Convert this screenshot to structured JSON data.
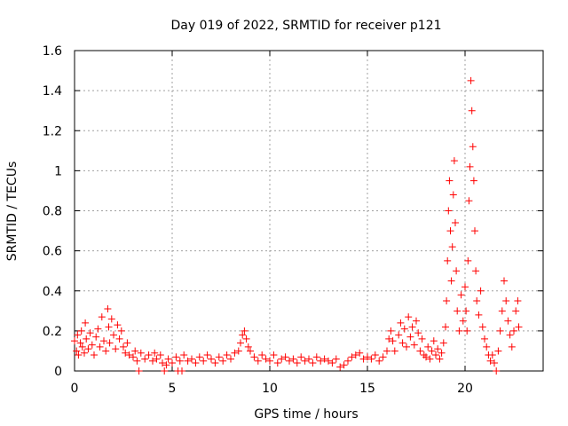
{
  "chart_data": {
    "type": "scatter",
    "title": "Day 019 of 2022, SRMTID for receiver p121",
    "xlabel": "GPS time / hours",
    "ylabel": "SRMTID / TECUs",
    "xlim": [
      0,
      24
    ],
    "ylim": [
      0,
      1.6
    ],
    "x_ticks": [
      0,
      5,
      10,
      15,
      20
    ],
    "x_tick_labels": [
      "0",
      "5",
      "10",
      "15",
      "20"
    ],
    "y_ticks": [
      0,
      0.2,
      0.4,
      0.6,
      0.8,
      1,
      1.2,
      1.4,
      1.6
    ],
    "y_tick_labels": [
      "0",
      "0.2",
      "0.4",
      "0.6",
      "0.8",
      "1",
      "1.2",
      "1.4",
      "1.6"
    ],
    "grid": true,
    "marker": "+",
    "point_color": "#ff0000",
    "series": [
      {
        "name": "SRMTID",
        "color": "#ff0000",
        "points": [
          [
            0.0,
            0.15
          ],
          [
            0.1,
            0.1
          ],
          [
            0.15,
            0.18
          ],
          [
            0.2,
            0.08
          ],
          [
            0.3,
            0.14
          ],
          [
            0.35,
            0.2
          ],
          [
            0.4,
            0.12
          ],
          [
            0.5,
            0.09
          ],
          [
            0.55,
            0.24
          ],
          [
            0.6,
            0.16
          ],
          [
            0.7,
            0.11
          ],
          [
            0.8,
            0.19
          ],
          [
            0.9,
            0.13
          ],
          [
            1.0,
            0.08
          ],
          [
            1.1,
            0.17
          ],
          [
            1.2,
            0.21
          ],
          [
            1.3,
            0.12
          ],
          [
            1.4,
            0.27
          ],
          [
            1.5,
            0.15
          ],
          [
            1.6,
            0.1
          ],
          [
            1.7,
            0.31
          ],
          [
            1.75,
            0.22
          ],
          [
            1.8,
            0.14
          ],
          [
            1.9,
            0.26
          ],
          [
            2.0,
            0.18
          ],
          [
            2.1,
            0.11
          ],
          [
            2.2,
            0.23
          ],
          [
            2.3,
            0.16
          ],
          [
            2.4,
            0.2
          ],
          [
            2.5,
            0.12
          ],
          [
            2.6,
            0.09
          ],
          [
            2.7,
            0.14
          ],
          [
            2.8,
            0.08
          ],
          [
            3.0,
            0.07
          ],
          [
            3.1,
            0.1
          ],
          [
            3.2,
            0.05
          ],
          [
            3.3,
            0.0
          ],
          [
            3.4,
            0.09
          ],
          [
            3.6,
            0.06
          ],
          [
            3.8,
            0.08
          ],
          [
            4.0,
            0.05
          ],
          [
            4.1,
            0.09
          ],
          [
            4.2,
            0.06
          ],
          [
            4.4,
            0.08
          ],
          [
            4.5,
            0.04
          ],
          [
            4.6,
            0.0
          ],
          [
            4.7,
            0.03
          ],
          [
            4.8,
            0.06
          ],
          [
            5.0,
            0.04
          ],
          [
            5.2,
            0.07
          ],
          [
            5.3,
            0.0
          ],
          [
            5.4,
            0.05
          ],
          [
            5.5,
            0.0
          ],
          [
            5.6,
            0.08
          ],
          [
            5.8,
            0.05
          ],
          [
            6.0,
            0.06
          ],
          [
            6.2,
            0.04
          ],
          [
            6.4,
            0.07
          ],
          [
            6.6,
            0.05
          ],
          [
            6.8,
            0.08
          ],
          [
            7.0,
            0.06
          ],
          [
            7.2,
            0.04
          ],
          [
            7.4,
            0.07
          ],
          [
            7.6,
            0.05
          ],
          [
            7.8,
            0.08
          ],
          [
            8.0,
            0.06
          ],
          [
            8.2,
            0.09
          ],
          [
            8.4,
            0.1
          ],
          [
            8.5,
            0.14
          ],
          [
            8.6,
            0.18
          ],
          [
            8.7,
            0.2
          ],
          [
            8.8,
            0.16
          ],
          [
            8.9,
            0.12
          ],
          [
            9.0,
            0.1
          ],
          [
            9.2,
            0.07
          ],
          [
            9.4,
            0.05
          ],
          [
            9.6,
            0.08
          ],
          [
            9.8,
            0.06
          ],
          [
            10.0,
            0.05
          ],
          [
            10.2,
            0.08
          ],
          [
            10.4,
            0.04
          ],
          [
            10.6,
            0.06
          ],
          [
            10.8,
            0.07
          ],
          [
            11.0,
            0.05
          ],
          [
            11.2,
            0.06
          ],
          [
            11.4,
            0.04
          ],
          [
            11.6,
            0.07
          ],
          [
            11.8,
            0.05
          ],
          [
            12.0,
            0.06
          ],
          [
            12.2,
            0.04
          ],
          [
            12.4,
            0.07
          ],
          [
            12.6,
            0.05
          ],
          [
            12.8,
            0.06
          ],
          [
            13.0,
            0.05
          ],
          [
            13.2,
            0.04
          ],
          [
            13.4,
            0.06
          ],
          [
            13.6,
            0.02
          ],
          [
            13.8,
            0.03
          ],
          [
            14.0,
            0.05
          ],
          [
            14.2,
            0.07
          ],
          [
            14.4,
            0.08
          ],
          [
            14.6,
            0.09
          ],
          [
            14.8,
            0.06
          ],
          [
            15.0,
            0.07
          ],
          [
            15.2,
            0.06
          ],
          [
            15.4,
            0.08
          ],
          [
            15.6,
            0.05
          ],
          [
            15.8,
            0.07
          ],
          [
            16.0,
            0.1
          ],
          [
            16.1,
            0.16
          ],
          [
            16.2,
            0.2
          ],
          [
            16.3,
            0.15
          ],
          [
            16.4,
            0.1
          ],
          [
            16.6,
            0.18
          ],
          [
            16.7,
            0.24
          ],
          [
            16.8,
            0.14
          ],
          [
            16.9,
            0.21
          ],
          [
            17.0,
            0.12
          ],
          [
            17.1,
            0.27
          ],
          [
            17.2,
            0.17
          ],
          [
            17.3,
            0.22
          ],
          [
            17.4,
            0.13
          ],
          [
            17.5,
            0.25
          ],
          [
            17.6,
            0.19
          ],
          [
            17.7,
            0.1
          ],
          [
            17.8,
            0.16
          ],
          [
            17.9,
            0.08
          ],
          [
            18.0,
            0.07
          ],
          [
            18.1,
            0.12
          ],
          [
            18.2,
            0.06
          ],
          [
            18.3,
            0.1
          ],
          [
            18.4,
            0.15
          ],
          [
            18.5,
            0.08
          ],
          [
            18.6,
            0.11
          ],
          [
            18.7,
            0.06
          ],
          [
            18.8,
            0.09
          ],
          [
            18.9,
            0.14
          ],
          [
            19.0,
            0.22
          ],
          [
            19.05,
            0.35
          ],
          [
            19.1,
            0.55
          ],
          [
            19.15,
            0.8
          ],
          [
            19.2,
            0.95
          ],
          [
            19.25,
            0.7
          ],
          [
            19.3,
            0.45
          ],
          [
            19.35,
            0.62
          ],
          [
            19.4,
            0.88
          ],
          [
            19.45,
            1.05
          ],
          [
            19.5,
            0.74
          ],
          [
            19.55,
            0.5
          ],
          [
            19.6,
            0.3
          ],
          [
            19.7,
            0.2
          ],
          [
            19.8,
            0.38
          ],
          [
            19.9,
            0.25
          ],
          [
            20.0,
            0.42
          ],
          [
            20.05,
            0.3
          ],
          [
            20.1,
            0.2
          ],
          [
            20.15,
            0.55
          ],
          [
            20.2,
            0.85
          ],
          [
            20.25,
            1.02
          ],
          [
            20.3,
            1.45
          ],
          [
            20.35,
            1.3
          ],
          [
            20.4,
            1.12
          ],
          [
            20.45,
            0.95
          ],
          [
            20.5,
            0.7
          ],
          [
            20.55,
            0.5
          ],
          [
            20.6,
            0.35
          ],
          [
            20.7,
            0.28
          ],
          [
            20.8,
            0.4
          ],
          [
            20.9,
            0.22
          ],
          [
            21.0,
            0.16
          ],
          [
            21.1,
            0.12
          ],
          [
            21.2,
            0.08
          ],
          [
            21.3,
            0.05
          ],
          [
            21.4,
            0.08
          ],
          [
            21.5,
            0.04
          ],
          [
            21.6,
            0.0
          ],
          [
            21.7,
            0.1
          ],
          [
            21.8,
            0.2
          ],
          [
            21.9,
            0.3
          ],
          [
            22.0,
            0.45
          ],
          [
            22.1,
            0.35
          ],
          [
            22.2,
            0.25
          ],
          [
            22.3,
            0.18
          ],
          [
            22.4,
            0.12
          ],
          [
            22.5,
            0.2
          ],
          [
            22.6,
            0.3
          ],
          [
            22.7,
            0.35
          ],
          [
            22.75,
            0.22
          ]
        ]
      }
    ]
  }
}
